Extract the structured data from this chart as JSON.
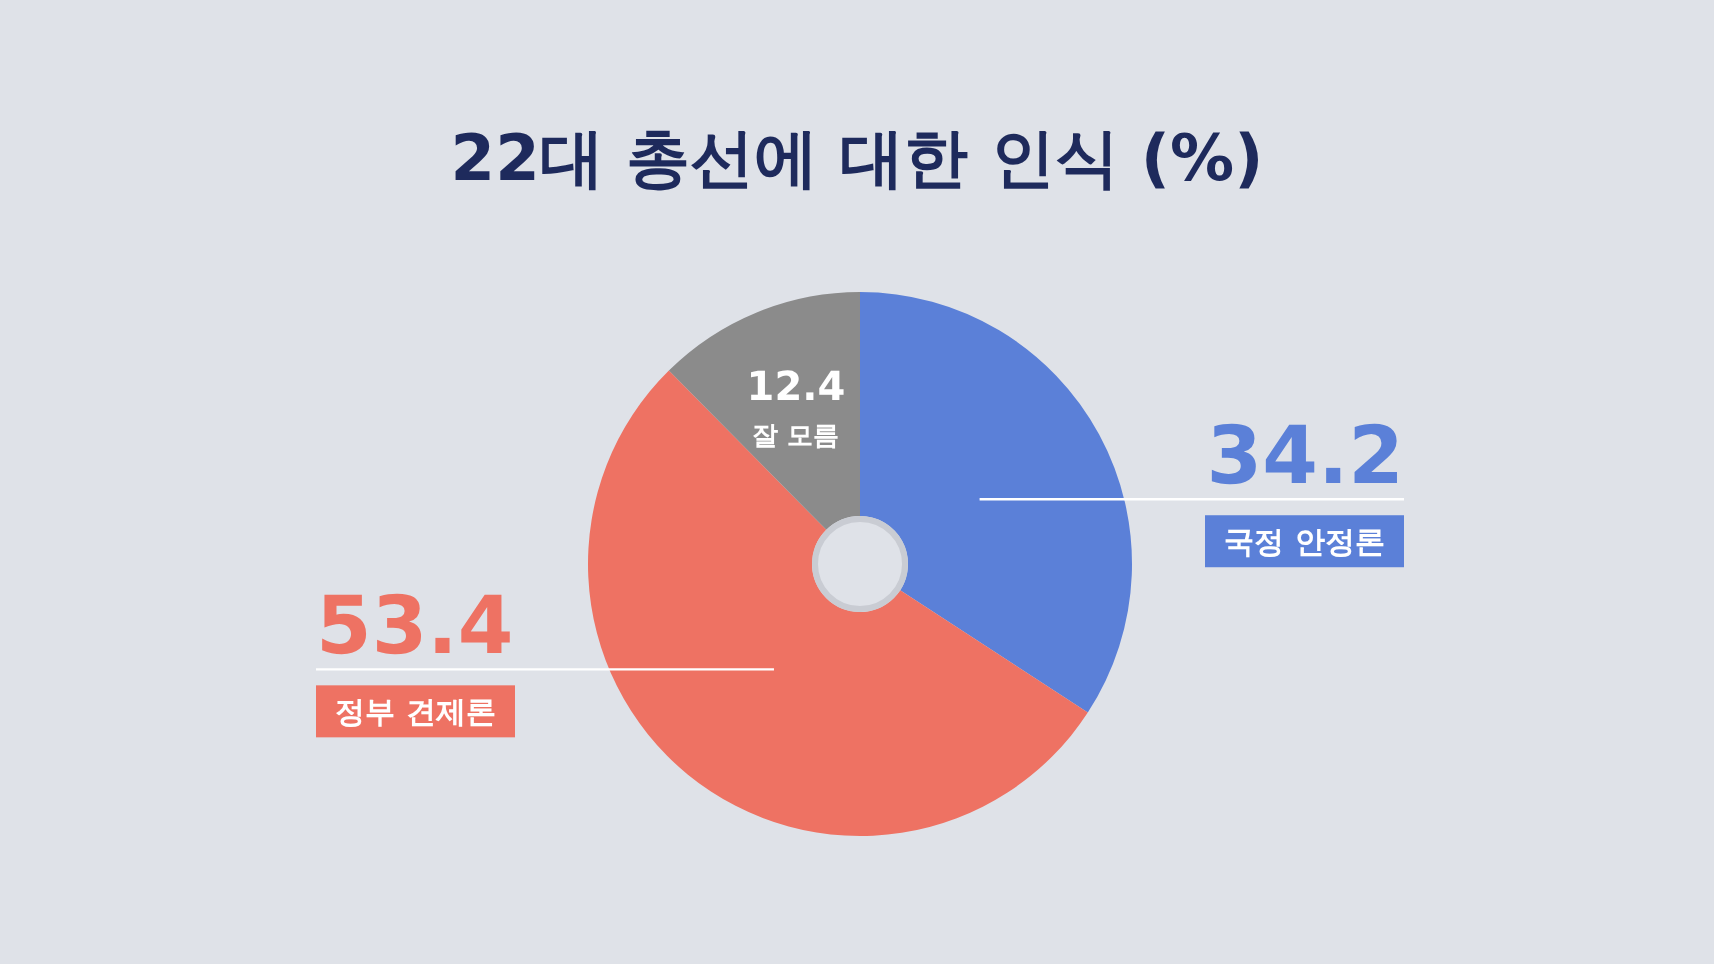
{
  "chart_data": {
    "type": "donut",
    "title": "22대 총선에 대한 인식 (%)",
    "categories": [
      "국정 안정론",
      "정부 견제론",
      "잘 모름"
    ],
    "values": [
      34.2,
      53.4,
      12.4
    ],
    "colors": [
      "#5b80d8",
      "#ee7263",
      "#8b8b8b"
    ],
    "data_labels": true
  }
}
